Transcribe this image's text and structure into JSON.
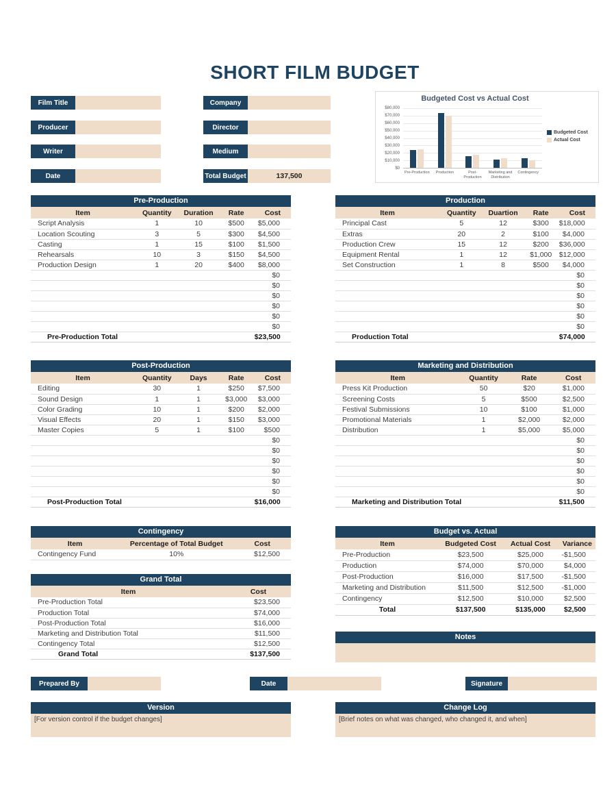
{
  "page": {
    "title": "SHORT FILM BUDGET"
  },
  "colors": {
    "navy": "#1e4461",
    "tan": "#efdcc9"
  },
  "form": {
    "left": [
      {
        "label": "Film Title",
        "value": ""
      },
      {
        "label": "Producer",
        "value": ""
      },
      {
        "label": "Writer",
        "value": ""
      },
      {
        "label": "Date",
        "value": ""
      }
    ],
    "middle": [
      {
        "label": "Company",
        "value": ""
      },
      {
        "label": "Director",
        "value": ""
      },
      {
        "label": "Medium",
        "value": ""
      },
      {
        "label": "Total Budget",
        "value": "137,500"
      }
    ]
  },
  "chart_data": {
    "type": "bar",
    "title": "Budgeted Cost vs Actual Cost",
    "categories": [
      "Pre-Production",
      "Production",
      "Post-Production",
      "Marketing and Distribution",
      "Contingency"
    ],
    "series": [
      {
        "name": "Budgeted Cost",
        "color": "#1e4461",
        "values": [
          23500,
          74000,
          16000,
          11500,
          12500
        ]
      },
      {
        "name": "Actual Cost",
        "color": "#efdcc9",
        "values": [
          25000,
          70000,
          17500,
          12500,
          10000
        ]
      }
    ],
    "xlabel": "",
    "ylabel": "",
    "ylim": [
      0,
      80000
    ],
    "ytick_labels": [
      "$80,000",
      "$70,000",
      "$60,000",
      "$50,000",
      "$40,000",
      "$30,000",
      "$20,000",
      "$10,000",
      "$0"
    ],
    "grid": true,
    "legend_position": "right"
  },
  "tables": {
    "pre_production": {
      "title": "Pre-Production",
      "columns": [
        "Item",
        "Quantity",
        "Duration",
        "Rate",
        "Cost"
      ],
      "rows": [
        [
          "Script Analysis",
          "1",
          "10",
          "$500",
          "$5,000"
        ],
        [
          "Location Scouting",
          "3",
          "5",
          "$300",
          "$4,500"
        ],
        [
          "Casting",
          "1",
          "15",
          "$100",
          "$1,500"
        ],
        [
          "Rehearsals",
          "10",
          "3",
          "$150",
          "$4,500"
        ],
        [
          "Production Design",
          "1",
          "20",
          "$400",
          "$8,000"
        ],
        [
          "",
          "",
          "",
          "",
          "$0"
        ],
        [
          "",
          "",
          "",
          "",
          "$0"
        ],
        [
          "",
          "",
          "",
          "",
          "$0"
        ],
        [
          "",
          "",
          "",
          "",
          "$0"
        ],
        [
          "",
          "",
          "",
          "",
          "$0"
        ],
        [
          "",
          "",
          "",
          "",
          "$0"
        ]
      ],
      "total": {
        "label": "Pre-Production Total",
        "value": "$23,500"
      }
    },
    "production": {
      "title": "Production",
      "columns": [
        "Item",
        "Quantity",
        "Duartion",
        "Rate",
        "Cost"
      ],
      "rows": [
        [
          "Principal Cast",
          "5",
          "12",
          "$300",
          "$18,000"
        ],
        [
          "Extras",
          "20",
          "2",
          "$100",
          "$4,000"
        ],
        [
          "Production Crew",
          "15",
          "12",
          "$200",
          "$36,000"
        ],
        [
          "Equipment Rental",
          "1",
          "12",
          "$1,000",
          "$12,000"
        ],
        [
          "Set Construction",
          "1",
          "8",
          "$500",
          "$4,000"
        ],
        [
          "",
          "",
          "",
          "",
          "$0"
        ],
        [
          "",
          "",
          "",
          "",
          "$0"
        ],
        [
          "",
          "",
          "",
          "",
          "$0"
        ],
        [
          "",
          "",
          "",
          "",
          "$0"
        ],
        [
          "",
          "",
          "",
          "",
          "$0"
        ],
        [
          "",
          "",
          "",
          "",
          "$0"
        ]
      ],
      "total": {
        "label": "Production Total",
        "value": "$74,000"
      }
    },
    "post_production": {
      "title": "Post-Production",
      "columns": [
        "Item",
        "Quantity",
        "Days",
        "Rate",
        "Cost"
      ],
      "rows": [
        [
          "Editing",
          "30",
          "1",
          "$250",
          "$7,500"
        ],
        [
          "Sound Design",
          "1",
          "1",
          "$3,000",
          "$3,000"
        ],
        [
          "Color Grading",
          "10",
          "1",
          "$200",
          "$2,000"
        ],
        [
          "Visual Effects",
          "20",
          "1",
          "$150",
          "$3,000"
        ],
        [
          "Master Copies",
          "5",
          "1",
          "$100",
          "$500"
        ],
        [
          "",
          "",
          "",
          "",
          "$0"
        ],
        [
          "",
          "",
          "",
          "",
          "$0"
        ],
        [
          "",
          "",
          "",
          "",
          "$0"
        ],
        [
          "",
          "",
          "",
          "",
          "$0"
        ],
        [
          "",
          "",
          "",
          "",
          "$0"
        ],
        [
          "",
          "",
          "",
          "",
          "$0"
        ]
      ],
      "total": {
        "label": "Post-Production Total",
        "value": "$16,000"
      }
    },
    "marketing": {
      "title": "Marketing and Distribution",
      "columns": [
        "Item",
        "Quantity",
        "Rate",
        "Cost"
      ],
      "rows": [
        [
          "Press Kit Production",
          "50",
          "$20",
          "$1,000"
        ],
        [
          "Screening Costs",
          "5",
          "$500",
          "$2,500"
        ],
        [
          "Festival Submissions",
          "10",
          "$100",
          "$1,000"
        ],
        [
          "Promotional Materials",
          "1",
          "$2,000",
          "$2,000"
        ],
        [
          "Distribution",
          "1",
          "$5,000",
          "$5,000"
        ],
        [
          "",
          "",
          "",
          "$0"
        ],
        [
          "",
          "",
          "",
          "$0"
        ],
        [
          "",
          "",
          "",
          "$0"
        ],
        [
          "",
          "",
          "",
          "$0"
        ],
        [
          "",
          "",
          "",
          "$0"
        ],
        [
          "",
          "",
          "",
          "$0"
        ]
      ],
      "total": {
        "label": "Marketing and Distribution Total",
        "value": "$11,500"
      }
    },
    "contingency": {
      "title": "Contingency",
      "columns": [
        "Item",
        "Percentage of Total Budget",
        "Cost"
      ],
      "rows": [
        [
          "Contingency Fund",
          "10%",
          "$12,500"
        ]
      ]
    },
    "grand_total": {
      "title": "Grand Total",
      "columns": [
        "Item",
        "Cost"
      ],
      "rows": [
        [
          "Pre-Production Total",
          "$23,500"
        ],
        [
          "Production Total",
          "$74,000"
        ],
        [
          "Post-Production Total",
          "$16,000"
        ],
        [
          "Marketing and Distribution Total",
          "$11,500"
        ],
        [
          "Contingency Total",
          "$12,500"
        ]
      ],
      "total": {
        "label": "Grand Total",
        "value": "$137,500"
      }
    },
    "budget_vs_actual": {
      "title": "Budget vs. Actual",
      "columns": [
        "Item",
        "Budgeted Cost",
        "Actual Cost",
        "Variance"
      ],
      "rows": [
        [
          "Pre-Production",
          "$23,500",
          "$25,000",
          "-$1,500"
        ],
        [
          "Production",
          "$74,000",
          "$70,000",
          "$4,000"
        ],
        [
          "Post-Production",
          "$16,000",
          "$17,500",
          "-$1,500"
        ],
        [
          "Marketing and Distribution",
          "$11,500",
          "$12,500",
          "-$1,000"
        ],
        [
          "Contingency",
          "$12,500",
          "$10,000",
          "$2,500"
        ]
      ],
      "total_row": [
        "Total",
        "$137,500",
        "$135,000",
        "$2,500"
      ]
    }
  },
  "notes": {
    "title": "Notes",
    "body": ""
  },
  "footer": {
    "prepared_by": {
      "label": "Prepared By",
      "value": ""
    },
    "date": {
      "label": "Date",
      "value": ""
    },
    "signature": {
      "label": "Signature",
      "value": ""
    }
  },
  "version": {
    "title": "Version",
    "body": "[For version control if the budget changes]"
  },
  "change_log": {
    "title": "Change Log",
    "body": "[Brief notes on what was changed, who changed it, and when]"
  }
}
